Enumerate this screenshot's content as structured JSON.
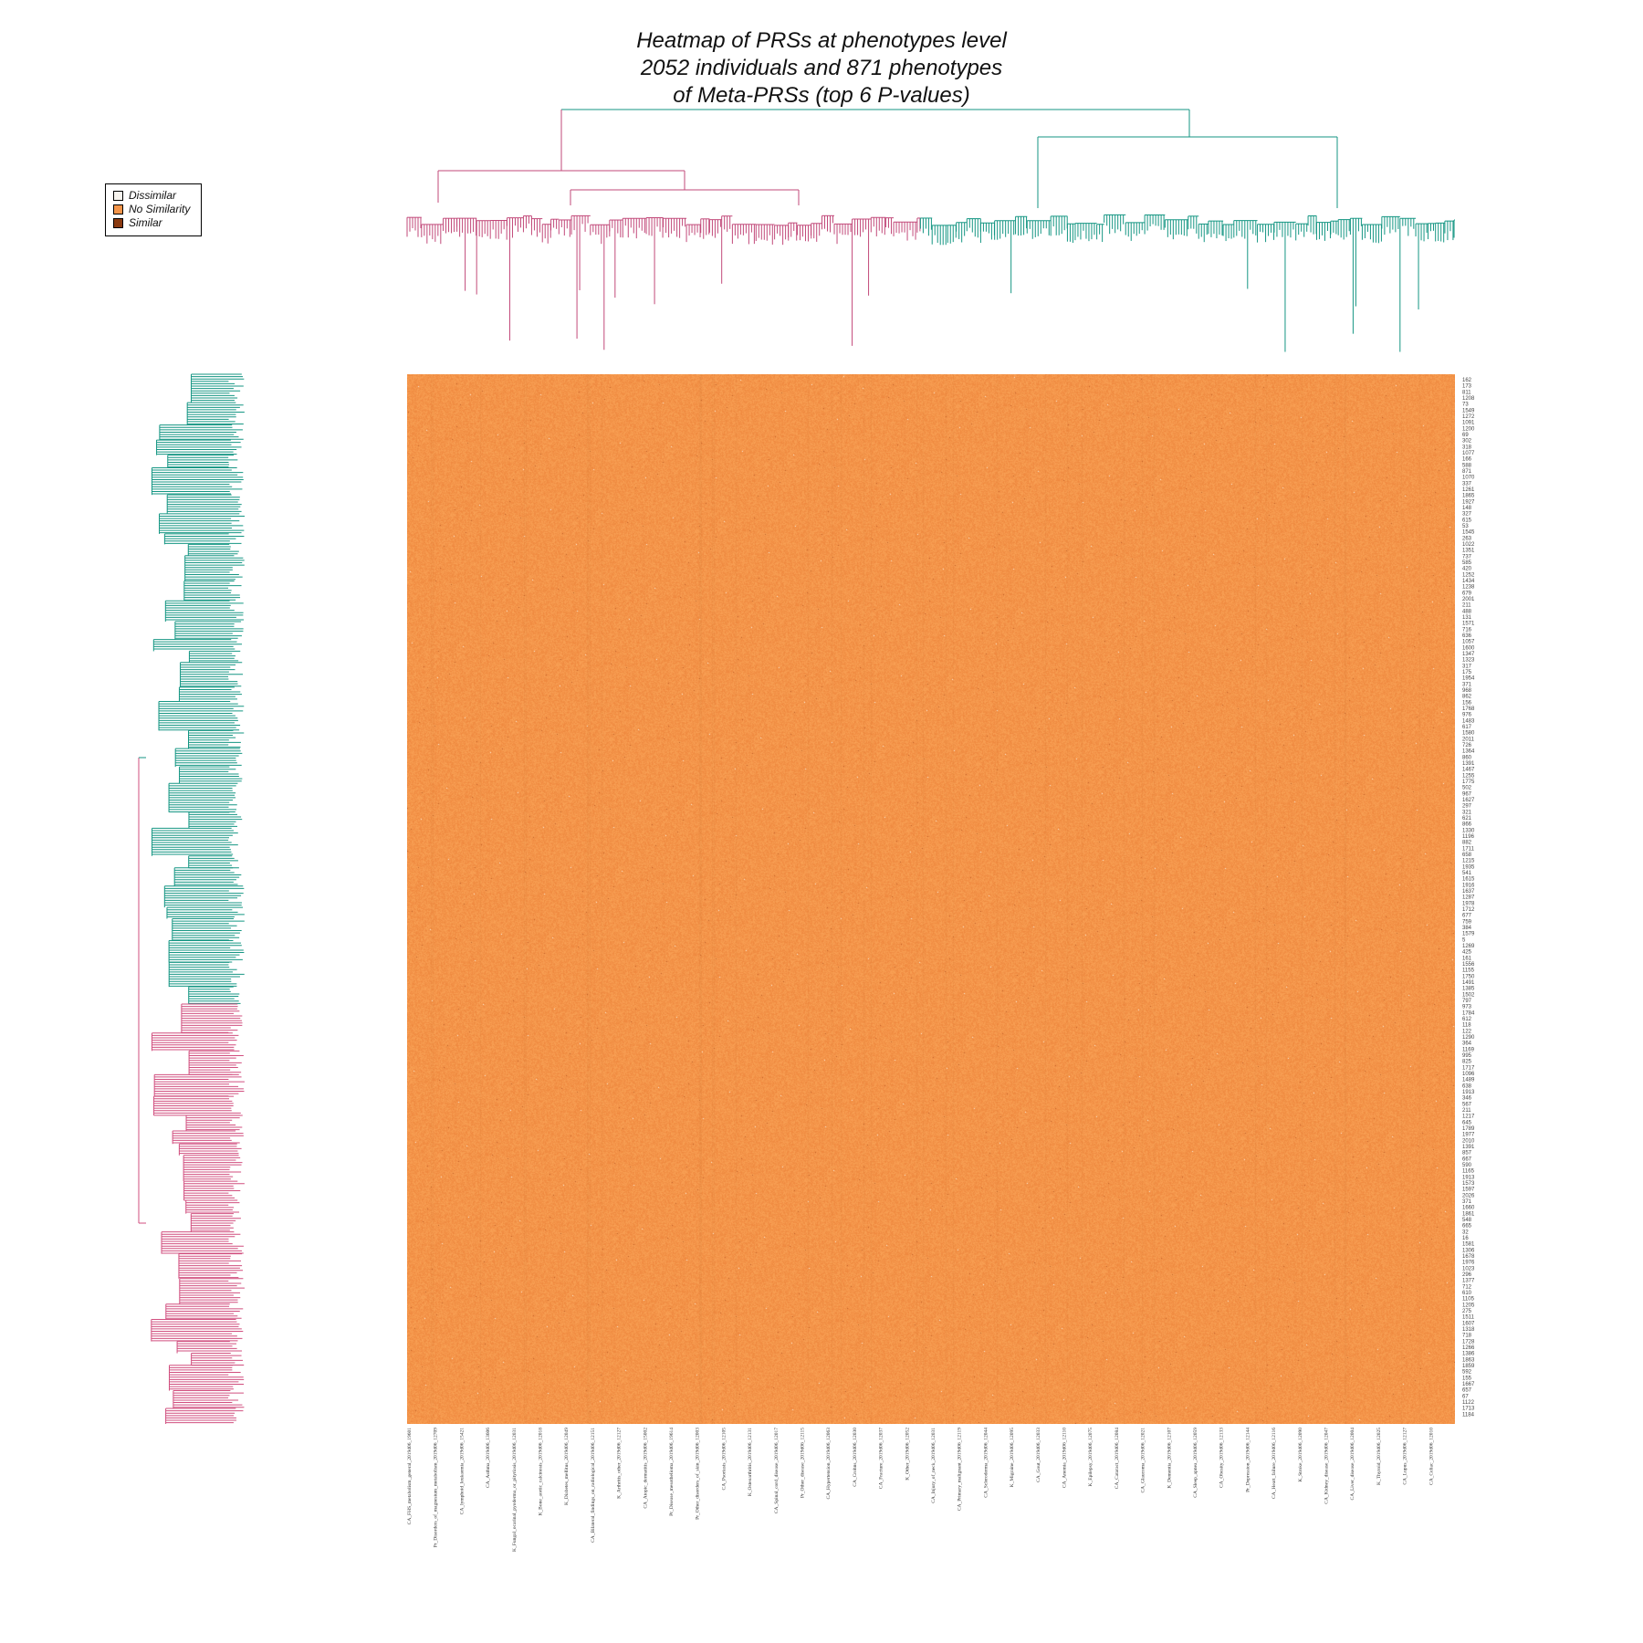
{
  "chart_data": {
    "type": "heatmap",
    "title": "Heatmap of PRSs at phenotypes level",
    "subtitle_lines": [
      "2052 individuals and 871 phenotypes",
      "of Meta-PRSs (top 6 P-values)"
    ],
    "rows": 2052,
    "columns": 871,
    "legend": {
      "placement": "top-left",
      "entries": [
        {
          "label": "Dissimilar",
          "color": "#f7f4ee"
        },
        {
          "label": "No Similarity",
          "color": "#f4954a"
        },
        {
          "label": "Similar",
          "color": "#8a3a10"
        }
      ]
    },
    "dominant_value": "No Similarity",
    "column_clusters": [
      {
        "color": "#c24a7a",
        "share": 0.49
      },
      {
        "color": "#159683",
        "share": 0.51
      }
    ],
    "row_clusters": [
      {
        "color": "#159683",
        "share": 0.6
      },
      {
        "color": "#d14f7f",
        "share": 0.4
      }
    ],
    "row_tick_labels": [
      "162",
      "173",
      "811",
      "1208",
      "73",
      "1549",
      "1272",
      "1091",
      "1200",
      "69",
      "302",
      "318",
      "1077",
      "166",
      "588",
      "871",
      "1070",
      "337",
      "1261",
      "1865",
      "1927",
      "148",
      "327",
      "615",
      "53",
      "1545",
      "263",
      "1022",
      "1351",
      "737",
      "585",
      "420",
      "1252",
      "1434",
      "1238",
      "679",
      "2001",
      "211",
      "488",
      "131",
      "1571",
      "716",
      "636",
      "1057",
      "1600",
      "1347",
      "1323",
      "317",
      "175",
      "1954",
      "371",
      "968",
      "862",
      "156",
      "1768",
      "976",
      "1483",
      "617",
      "1580",
      "2011",
      "726",
      "1364",
      "860",
      "1391",
      "1467",
      "1255",
      "1775",
      "502",
      "967",
      "1627",
      "297",
      "321",
      "621",
      "866",
      "1330",
      "1196",
      "882",
      "1711",
      "658",
      "1215",
      "1935",
      "541",
      "1615",
      "1916",
      "1637",
      "1287",
      "1978",
      "1712",
      "677",
      "759",
      "384",
      "1579",
      "5",
      "1269",
      "425",
      "161",
      "1556",
      "1155",
      "1750",
      "1491",
      "1385",
      "1502",
      "797",
      "973",
      "1784",
      "612",
      "118",
      "122",
      "1290",
      "364",
      "1169",
      "995",
      "825",
      "1717",
      "1096",
      "1489",
      "638",
      "1913",
      "346",
      "567",
      "211",
      "1217",
      "645",
      "1789",
      "1977",
      "2010",
      "1391",
      "857",
      "667",
      "590",
      "1165",
      "1913",
      "1573",
      "1597",
      "2026",
      "371",
      "1660",
      "1861",
      "548",
      "665",
      "32",
      "16",
      "1581",
      "1306",
      "1678",
      "1976",
      "1023",
      "296",
      "1377",
      "712",
      "610",
      "1105",
      "1205",
      "275",
      "1511",
      "1607",
      "1318",
      "718",
      "1728",
      "1266",
      "1386",
      "1863",
      "1859",
      "592",
      "155",
      "1667",
      "657",
      "67",
      "1122",
      "1713",
      "1184"
    ],
    "column_tick_labels": [
      "CA_FHS_metabolism_general_2019d06_19601",
      "Pr_Disorders_of_magnesium_metabolism_2019d06_12709",
      "CA_lymphoid_leukaemia_2019d06_15421",
      "CA_Asthma_2019d06_13606",
      "K_Fungal_ocarinal_pyoderma_or_pityriasis_2019d06_12031",
      "K_Bone_aortic_calcinosis_2019d06_12018",
      "K_Diabetes_mellitus_2019d06_12049",
      "CA_Bilateral_findings_on_radiological_2019d06_12151",
      "K_Arthritis_other_2019d06_12127",
      "CA_Atopic_dermatitis_2019d06_15002",
      "Pr_Disease_mesothelioma_2019d06_19614",
      "Pr_Other_disorders_of_skin_2019d06_12003",
      "CA_Psoriasis_2019d06_12105",
      "K_Osteoarthritis_2019d06_12131",
      "CA_Spinal_cord_disease_2019d06_12017",
      "Pr_Other_disease_2019d06_12115",
      "CA_Hypertension_2019d06_12063",
      "CA_Crohns_2019d06_12030",
      "CA_Fracture_2019d06_12037",
      "K_Other_2019d06_12052",
      "CA_Injury_of_neck_2019d06_12031",
      "CA_Primary_malignant_2019d06_12119",
      "CA_Scleroderma_2019d06_12044",
      "K_Migraine_2019d06_12095",
      "CA_Gout_2019d06_12033",
      "CA_Anemia_2019d06_12110",
      "K_Epilepsy_2019d06_12075",
      "CA_Cataract_2019d06_12084",
      "CA_Glaucoma_2019d06_12021",
      "K_Dementia_2019d06_12107",
      "CA_Sleep_apnea_2019d06_12059",
      "CA_Obesity_2019d06_12133",
      "Pr_Depression_2019d06_12144",
      "CA_Heart_failure_2019d06_12116",
      "K_Stroke_2019d06_12090",
      "CA_Kidney_disease_2019d06_12047",
      "CA_Liver_disease_2019d06_12004",
      "K_Thyroid_2019d06_12025",
      "CA_Lupus_2019d06_12127",
      "CA_Celiac_2019d06_12010"
    ],
    "xlabel": "",
    "ylabel": ""
  }
}
